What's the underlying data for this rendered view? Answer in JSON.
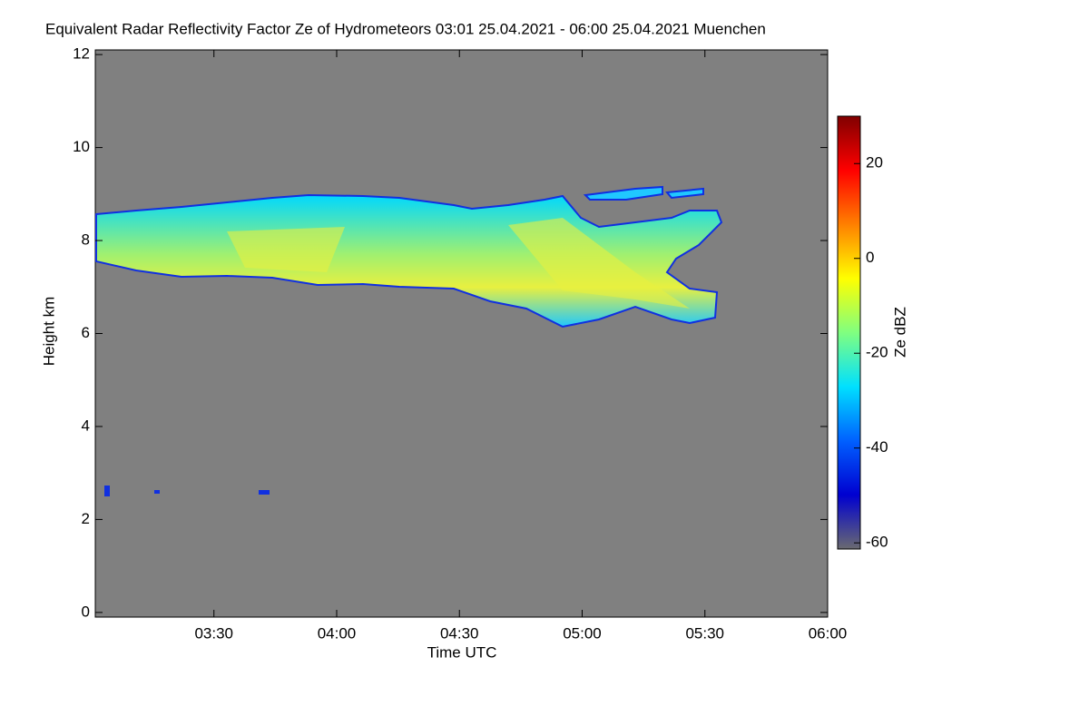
{
  "chart_data": {
    "type": "heatmap",
    "title": "Equivalent Radar Reflectivity Factor Ze of Hydrometeors   03:01 25.04.2021 - 06:00 25.04.2021 Muenchen",
    "xlabel": "Time UTC",
    "ylabel": "Height km",
    "xlim": [
      3.0167,
      6.0
    ],
    "xticks": [
      {
        "value": 3.5,
        "label": "03:30"
      },
      {
        "value": 4.0,
        "label": "04:00"
      },
      {
        "value": 4.5,
        "label": "04:30"
      },
      {
        "value": 5.0,
        "label": "05:00"
      },
      {
        "value": 5.5,
        "label": "05:30"
      },
      {
        "value": 6.0,
        "label": "06:00"
      }
    ],
    "ylim": [
      -0.1,
      12.1
    ],
    "yticks": [
      0,
      2,
      4,
      6,
      8,
      10,
      12
    ],
    "background": "#808080",
    "colorbar": {
      "label": "Ze dBZ",
      "lim": [
        -61.3,
        30
      ],
      "ticks": [
        -60,
        -40,
        -20,
        0,
        20
      ],
      "colors": [
        "#6a6a70",
        "#0000d0",
        "#0060ff",
        "#00e0ff",
        "#80ff80",
        "#ffff00",
        "#ff8000",
        "#ff0000",
        "#800000"
      ]
    }
  }
}
